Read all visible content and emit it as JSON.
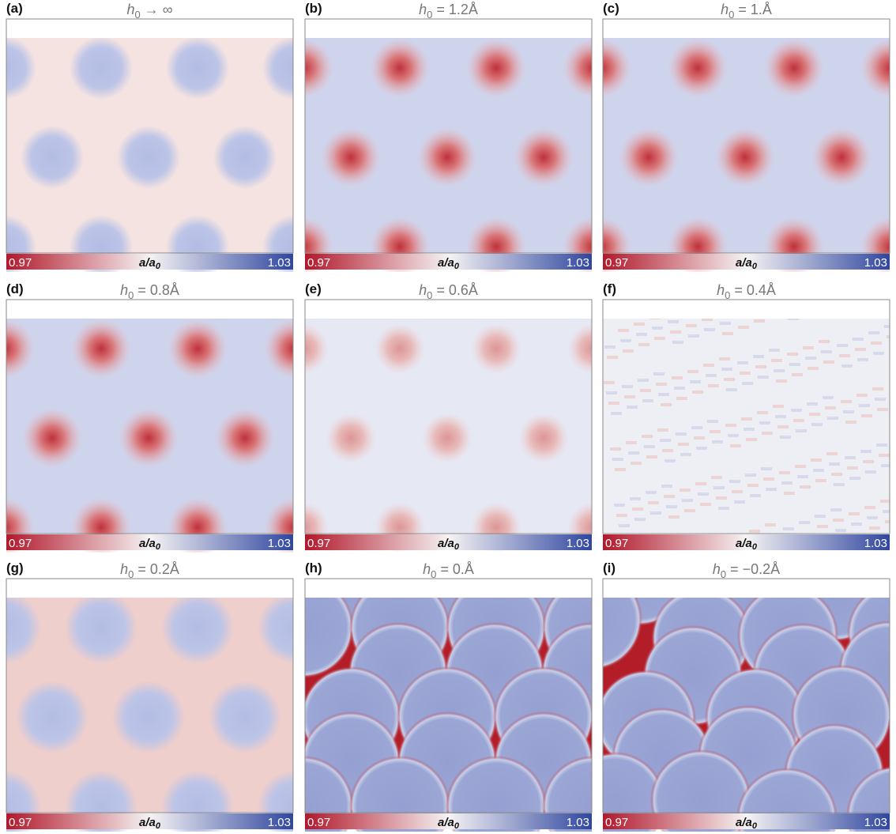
{
  "panels": [
    {
      "label": "(a)",
      "symbol": "h",
      "subscript": "0",
      "value": " → ∞"
    },
    {
      "label": "(b)",
      "symbol": "h",
      "subscript": "0",
      "value": " = 1.2Å"
    },
    {
      "label": "(c)",
      "symbol": "h",
      "subscript": "0",
      "value": " = 1.Å"
    },
    {
      "label": "(d)",
      "symbol": "h",
      "subscript": "0",
      "value": " = 0.8Å"
    },
    {
      "label": "(e)",
      "symbol": "h",
      "subscript": "0",
      "value": " = 0.6Å"
    },
    {
      "label": "(f)",
      "symbol": "h",
      "subscript": "0",
      "value": " = 0.4Å"
    },
    {
      "label": "(g)",
      "symbol": "h",
      "subscript": "0",
      "value": " = 0.2Å"
    },
    {
      "label": "(h)",
      "symbol": "h",
      "subscript": "0",
      "value": " = 0.Å"
    },
    {
      "label": "(i)",
      "symbol": "h",
      "subscript": "0",
      "value": " = −0.2Å"
    }
  ],
  "colorbar": {
    "min": "0.97",
    "max": "1.03",
    "label": "a/a",
    "label_subscript": "0"
  }
}
